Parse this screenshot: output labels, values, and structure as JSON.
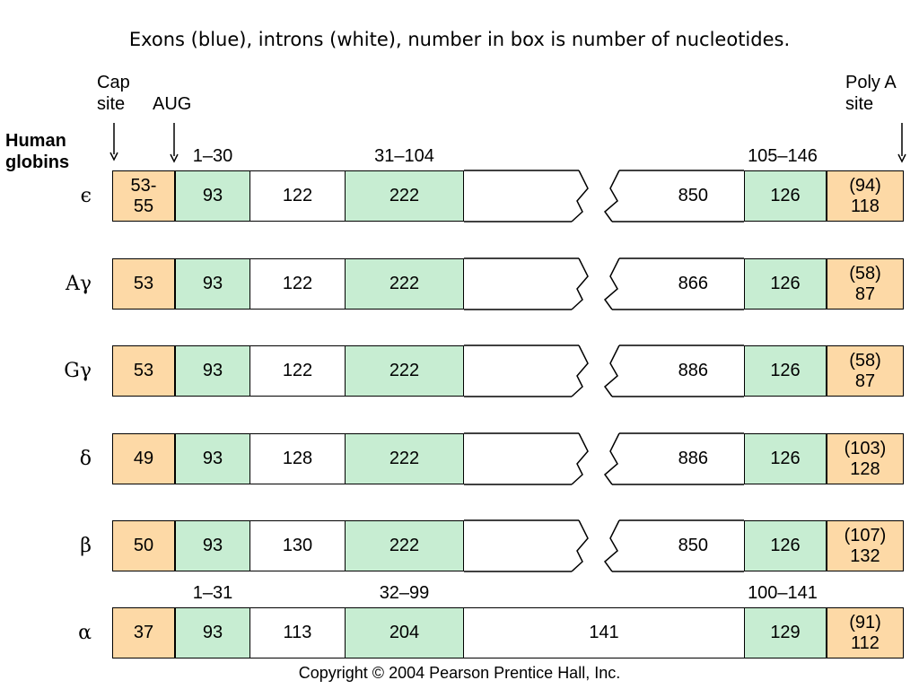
{
  "title": "Exons (blue), introns (white), number in box is number of nucleotides.",
  "labels": {
    "cap_site": "Cap\nsite",
    "aug": "AUG",
    "poly_a_site": "Poly A\nsite",
    "human_globins": "Human\nglobins"
  },
  "ranges_top": [
    "1–30",
    "31–104",
    "105–146"
  ],
  "ranges_alpha": [
    "1–31",
    "32–99",
    "100–141"
  ],
  "colors": {
    "utr": "#fdd9a6",
    "exon": "#c7edd2",
    "intron": "#ffffff"
  },
  "rows": [
    {
      "name": "ϵ",
      "utr5": "53-\n55",
      "exon1": "93",
      "intron1": "122",
      "exon2": "222",
      "intron2": "850",
      "exon3": "126",
      "utr3": "(94)\n118"
    },
    {
      "name": "Aγ",
      "utr5": "53",
      "exon1": "93",
      "intron1": "122",
      "exon2": "222",
      "intron2": "866",
      "exon3": "126",
      "utr3": "(58)\n87"
    },
    {
      "name": "Gγ",
      "utr5": "53",
      "exon1": "93",
      "intron1": "122",
      "exon2": "222",
      "intron2": "886",
      "exon3": "126",
      "utr3": "(58)\n87"
    },
    {
      "name": "δ",
      "utr5": "49",
      "exon1": "93",
      "intron1": "128",
      "exon2": "222",
      "intron2": "886",
      "exon3": "126",
      "utr3": "(103)\n128"
    },
    {
      "name": "β",
      "utr5": "50",
      "exon1": "93",
      "intron1": "130",
      "exon2": "222",
      "intron2": "850",
      "exon3": "126",
      "utr3": "(107)\n132"
    },
    {
      "name": "α",
      "utr5": "37",
      "exon1": "93",
      "intron1": "113",
      "exon2": "204",
      "intron2": "141",
      "exon3": "129",
      "utr3": "(91)\n112"
    }
  ],
  "copyright": "Copyright © 2004 Pearson Prentice Hall, Inc."
}
